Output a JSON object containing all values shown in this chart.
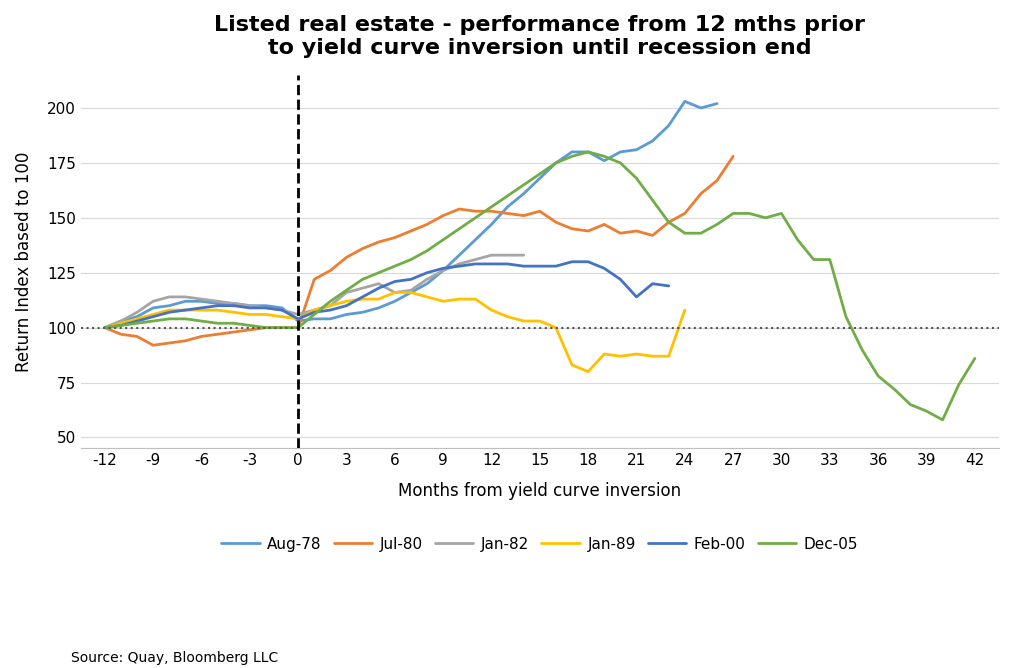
{
  "title": "Listed real estate - performance from 12 mths prior\nto yield curve inversion until recession end",
  "xlabel": "Months from yield curve inversion",
  "ylabel": "Return Index based to 100",
  "source": "Source: Quay, Bloomberg LLC",
  "xticks": [
    -12,
    -9,
    -6,
    -3,
    0,
    3,
    6,
    9,
    12,
    15,
    18,
    21,
    24,
    27,
    30,
    33,
    36,
    39,
    42
  ],
  "yticks": [
    50,
    75,
    100,
    125,
    150,
    175,
    200
  ],
  "ylim": [
    45,
    215
  ],
  "xlim": [
    -13.5,
    43.5
  ],
  "series": {
    "Aug-78": {
      "color": "#5B9BD5",
      "x": [
        -12,
        -11,
        -10,
        -9,
        -8,
        -7,
        -6,
        -5,
        -4,
        -3,
        -2,
        -1,
        0,
        1,
        2,
        3,
        4,
        5,
        6,
        7,
        8,
        9,
        10,
        11,
        12,
        13,
        14,
        15,
        16,
        17,
        18,
        19,
        20,
        21,
        22,
        23,
        24,
        25,
        26
      ],
      "y": [
        100,
        103,
        105,
        109,
        110,
        112,
        112,
        111,
        111,
        110,
        110,
        109,
        103,
        104,
        104,
        106,
        107,
        109,
        112,
        116,
        120,
        126,
        133,
        140,
        147,
        155,
        161,
        168,
        175,
        180,
        180,
        176,
        180,
        181,
        185,
        192,
        203,
        200,
        202
      ]
    },
    "Jul-80": {
      "color": "#ED7D31",
      "x": [
        -12,
        -11,
        -10,
        -9,
        -8,
        -7,
        -6,
        -5,
        -4,
        -3,
        -2,
        -1,
        0,
        1,
        2,
        3,
        4,
        5,
        6,
        7,
        8,
        9,
        10,
        11,
        12,
        13,
        14,
        15,
        16,
        17,
        18,
        19,
        20,
        21,
        22,
        23,
        24,
        25,
        26,
        27
      ],
      "y": [
        100,
        97,
        96,
        92,
        93,
        94,
        96,
        97,
        98,
        99,
        100,
        100,
        100,
        122,
        126,
        132,
        136,
        139,
        141,
        144,
        147,
        151,
        154,
        153,
        153,
        152,
        151,
        153,
        148,
        145,
        144,
        147,
        143,
        144,
        142,
        148,
        152,
        161,
        167,
        178
      ]
    },
    "Jan-82": {
      "color": "#A5A5A5",
      "x": [
        -12,
        -11,
        -10,
        -9,
        -8,
        -7,
        -6,
        -5,
        -4,
        -3,
        -2,
        -1,
        0,
        1,
        2,
        3,
        4,
        5,
        6,
        7,
        8,
        9,
        10,
        11,
        12,
        13,
        14
      ],
      "y": [
        100,
        103,
        107,
        112,
        114,
        114,
        113,
        112,
        111,
        110,
        109,
        108,
        106,
        108,
        110,
        116,
        118,
        120,
        116,
        117,
        122,
        126,
        129,
        131,
        133,
        133,
        133
      ]
    },
    "Jan-89": {
      "color": "#FFC000",
      "x": [
        -12,
        -11,
        -10,
        -9,
        -8,
        -7,
        -6,
        -5,
        -4,
        -3,
        -2,
        -1,
        0,
        1,
        2,
        3,
        4,
        5,
        6,
        7,
        8,
        9,
        10,
        11,
        12,
        13,
        14,
        15,
        16,
        17,
        18,
        19,
        20,
        21,
        22,
        23,
        24
      ],
      "y": [
        100,
        102,
        104,
        106,
        108,
        108,
        108,
        108,
        107,
        106,
        106,
        105,
        104,
        108,
        110,
        112,
        113,
        113,
        116,
        116,
        114,
        112,
        113,
        113,
        108,
        105,
        103,
        103,
        100,
        83,
        80,
        88,
        87,
        88,
        87,
        87,
        108
      ]
    },
    "Feb-00": {
      "color": "#4472C4",
      "x": [
        -12,
        -11,
        -10,
        -9,
        -8,
        -7,
        -6,
        -5,
        -4,
        -3,
        -2,
        -1,
        0,
        1,
        2,
        3,
        4,
        5,
        6,
        7,
        8,
        9,
        10,
        11,
        12,
        13,
        14,
        15,
        16,
        17,
        18,
        19,
        20,
        21,
        22,
        23
      ],
      "y": [
        100,
        101,
        103,
        105,
        107,
        108,
        109,
        110,
        110,
        109,
        109,
        108,
        104,
        107,
        108,
        110,
        114,
        118,
        121,
        122,
        125,
        127,
        128,
        129,
        129,
        129,
        128,
        128,
        128,
        130,
        130,
        127,
        122,
        114,
        120,
        119
      ]
    },
    "Dec-05": {
      "color": "#70AD47",
      "x": [
        -12,
        -11,
        -10,
        -9,
        -8,
        -7,
        -6,
        -5,
        -4,
        -3,
        -2,
        -1,
        0,
        1,
        2,
        3,
        4,
        5,
        6,
        7,
        8,
        9,
        10,
        11,
        12,
        13,
        14,
        15,
        16,
        17,
        18,
        19,
        20,
        21,
        22,
        23,
        24,
        25,
        26,
        27,
        28,
        29,
        30,
        31,
        32,
        33,
        34,
        35,
        36,
        37,
        38,
        39,
        40,
        41,
        42
      ],
      "y": [
        100,
        101,
        102,
        103,
        104,
        104,
        103,
        102,
        102,
        101,
        100,
        100,
        100,
        106,
        112,
        117,
        122,
        125,
        128,
        131,
        135,
        140,
        145,
        150,
        155,
        160,
        165,
        170,
        175,
        178,
        180,
        178,
        175,
        168,
        158,
        148,
        143,
        143,
        147,
        152,
        152,
        150,
        152,
        140,
        131,
        131,
        105,
        90,
        78,
        72,
        65,
        62,
        58,
        74,
        86
      ]
    }
  },
  "background_color": "#FFFFFF",
  "grid_color": "#D9D9D9",
  "title_fontsize": 16,
  "axis_label_fontsize": 12,
  "tick_fontsize": 11,
  "legend_fontsize": 11
}
